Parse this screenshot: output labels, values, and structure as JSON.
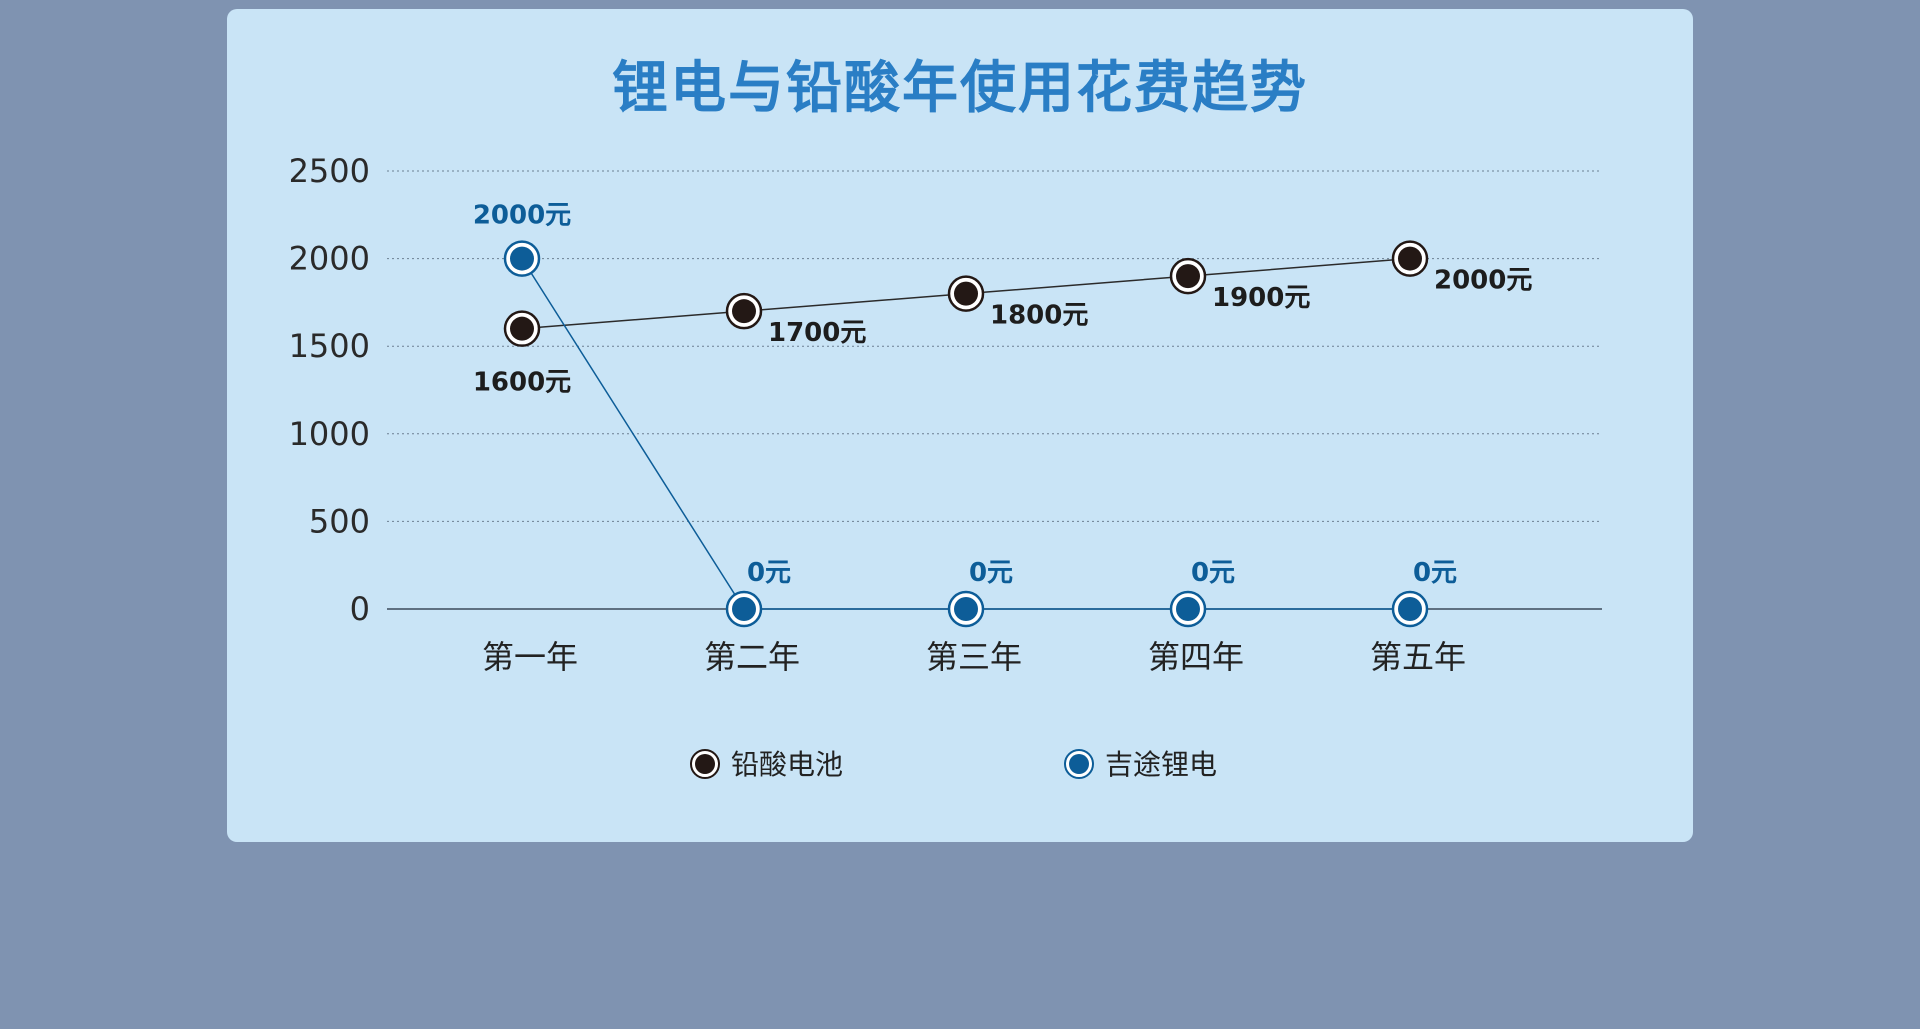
{
  "colors": {
    "background": "#7f93b1",
    "card": "#c9e4f6",
    "title": "#2a7ec5",
    "lead_acid": "#231815",
    "lithium": "#0d5d98"
  },
  "chart_data": {
    "type": "line",
    "title": "锂电与铅酸年使用花费趋势",
    "categories": [
      "第一年",
      "第二年",
      "第三年",
      "第四年",
      "第五年"
    ],
    "ylim": [
      0,
      2500
    ],
    "yticks": [
      "0",
      "500",
      "1000",
      "1500",
      "2000",
      "2500"
    ],
    "grid": true,
    "legend_position": "bottom",
    "series": [
      {
        "name": "铅酸电池",
        "values": [
          1600,
          1700,
          1800,
          1900,
          2000
        ],
        "labels": [
          "1600元",
          "1700元",
          "1800元",
          "1900元",
          "2000元"
        ]
      },
      {
        "name": "吉途锂电",
        "values": [
          2000,
          0,
          0,
          0,
          0
        ],
        "labels": [
          "2000元",
          "0元",
          "0元",
          "0元",
          "0元"
        ]
      }
    ]
  }
}
